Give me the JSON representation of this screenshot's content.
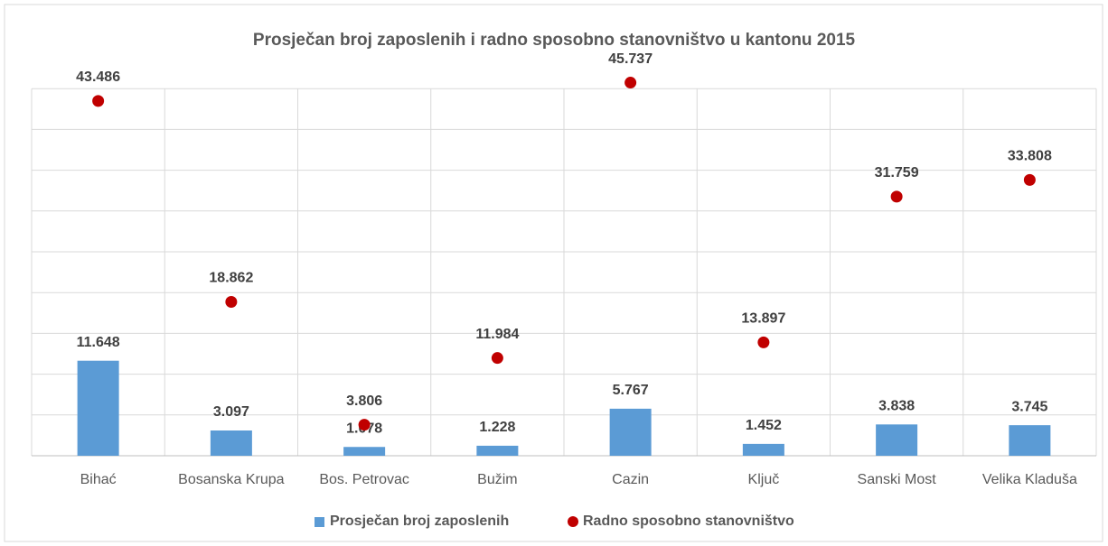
{
  "chart_data": {
    "type": "combo",
    "title": "Prosječan broj zaposlenih i radno sposobno stanovništvo u kantonu 2015",
    "categories": [
      "Bihać",
      "Bosanska Krupa",
      "Bos. Petrovac",
      "Bužim",
      "Cazin",
      "Ključ",
      "Sanski Most",
      "Velika Kladuša"
    ],
    "series": [
      {
        "name": "Prosječan broj zaposlenih",
        "type": "bar",
        "color": "#5b9bd5",
        "values": [
          11648,
          3097,
          1078,
          1228,
          5767,
          1452,
          3838,
          3745
        ],
        "value_labels": [
          "11.648",
          "3.097",
          "1.078",
          "1.228",
          "5.767",
          "1.452",
          "3.838",
          "3.745"
        ]
      },
      {
        "name": "Radno sposobno stanovništvo",
        "type": "scatter",
        "color": "#c00000",
        "values": [
          43486,
          18862,
          3806,
          11984,
          45737,
          13897,
          31759,
          33808
        ],
        "value_labels": [
          "43.486",
          "18.862",
          "3.806",
          "11.984",
          "45.737",
          "13.897",
          "31.759",
          "33.808"
        ]
      }
    ],
    "ylim": [
      0,
      50000
    ],
    "yticks": [
      0,
      5000,
      10000,
      15000,
      20000,
      25000,
      30000,
      35000,
      40000,
      45000
    ],
    "grid": true,
    "legend": "bottom"
  }
}
